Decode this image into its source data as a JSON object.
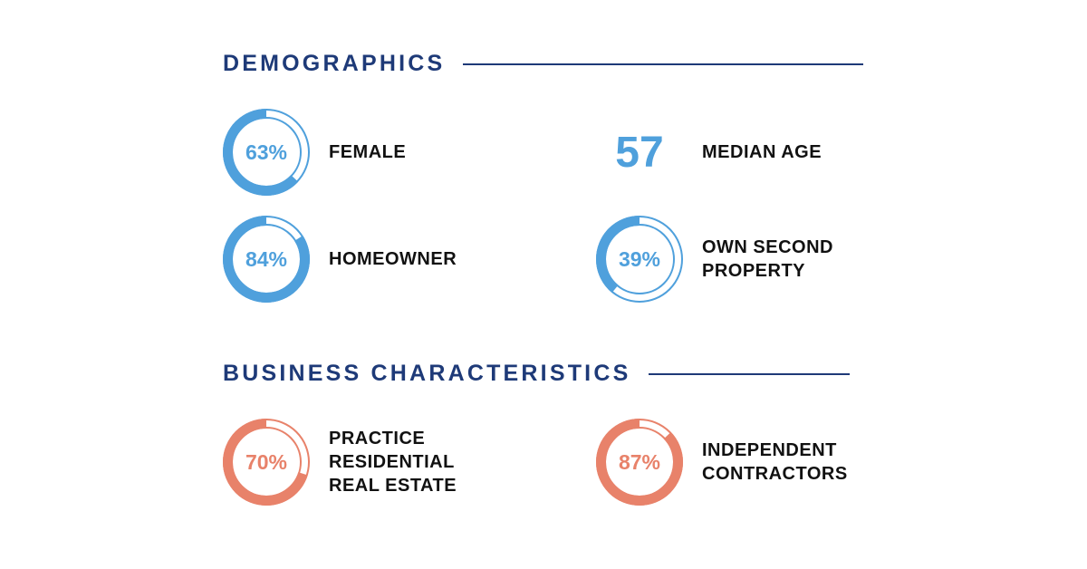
{
  "colors": {
    "heading": "#1e3a78",
    "blue": "#4fa0dc",
    "coral": "#e8826a",
    "label": "#111111"
  },
  "sections": {
    "demographics": {
      "title": "DEMOGRAPHICS",
      "stats": [
        {
          "value": "63%",
          "percent": 63,
          "label": "FEMALE"
        },
        {
          "value": "57",
          "label": "MEDIAN AGE"
        },
        {
          "value": "84%",
          "percent": 84,
          "label": "HOMEOWNER"
        },
        {
          "value": "39%",
          "percent": 39,
          "label": "OWN SECOND\nPROPERTY"
        }
      ]
    },
    "business": {
      "title": "BUSINESS CHARACTERISTICS",
      "stats": [
        {
          "value": "70%",
          "percent": 70,
          "label": "PRACTICE\nRESIDENTIAL\nREAL ESTATE"
        },
        {
          "value": "87%",
          "percent": 87,
          "label": "INDEPENDENT\nCONTRACTORS"
        }
      ]
    }
  },
  "chart_data": {
    "type": "table",
    "title": "Demographics & Business Characteristics",
    "rows": [
      {
        "section": "DEMOGRAPHICS",
        "metric": "FEMALE",
        "value": 63,
        "unit": "%"
      },
      {
        "section": "DEMOGRAPHICS",
        "metric": "MEDIAN AGE",
        "value": 57,
        "unit": ""
      },
      {
        "section": "DEMOGRAPHICS",
        "metric": "HOMEOWNER",
        "value": 84,
        "unit": "%"
      },
      {
        "section": "DEMOGRAPHICS",
        "metric": "OWN SECOND PROPERTY",
        "value": 39,
        "unit": "%"
      },
      {
        "section": "BUSINESS CHARACTERISTICS",
        "metric": "PRACTICE RESIDENTIAL REAL ESTATE",
        "value": 70,
        "unit": "%"
      },
      {
        "section": "BUSINESS CHARACTERISTICS",
        "metric": "INDEPENDENT CONTRACTORS",
        "value": 87,
        "unit": "%"
      }
    ]
  }
}
